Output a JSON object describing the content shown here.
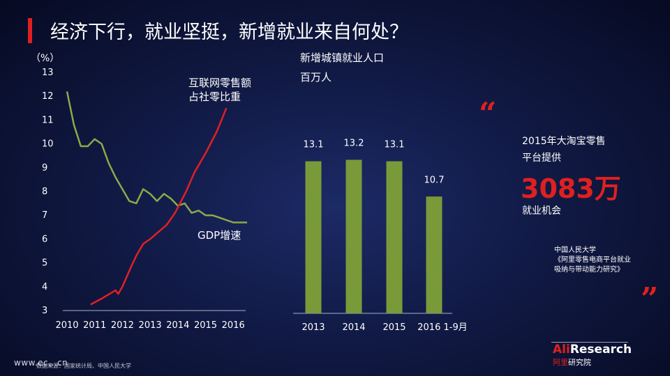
{
  "title": "经济下行，就业坚挺，新增就业来自何处？",
  "colors": {
    "accent": "#e02020",
    "gdp_line": "#8fa84a",
    "retail_line": "#e21f26",
    "bar": "#7a9a3a"
  },
  "chart_data": [
    {
      "type": "line",
      "ylabel": "（%）",
      "ylim": [
        3,
        13
      ],
      "yticks": [
        "3",
        "4",
        "5",
        "6",
        "7",
        "8",
        "9",
        "10",
        "11",
        "12",
        "13"
      ],
      "xlim": [
        2010,
        2016.6
      ],
      "xticks": [
        "2010",
        "2011",
        "2012",
        "2013",
        "2014",
        "2015",
        "2016"
      ],
      "series": [
        {
          "name": "GDP增速",
          "x": [
            2010,
            2010.25,
            2010.5,
            2010.75,
            2011,
            2011.25,
            2011.5,
            2011.75,
            2012,
            2012.25,
            2012.5,
            2012.75,
            2013,
            2013.25,
            2013.5,
            2013.75,
            2014,
            2014.25,
            2014.5,
            2014.75,
            2015,
            2015.25,
            2015.5,
            2015.75,
            2016,
            2016.25,
            2016.5
          ],
          "values": [
            12.2,
            10.8,
            9.9,
            9.9,
            10.2,
            10.0,
            9.2,
            8.6,
            8.1,
            7.6,
            7.5,
            8.1,
            7.9,
            7.6,
            7.9,
            7.7,
            7.4,
            7.5,
            7.1,
            7.2,
            7.0,
            7.0,
            6.9,
            6.8,
            6.7,
            6.7,
            6.7
          ]
        },
        {
          "name": "互联网零售额占社零比重",
          "name_lines": [
            "互联网零售额",
            "占社零比重"
          ],
          "x": [
            2010.85,
            2011.25,
            2011.75,
            2011.85,
            2012,
            2012.3,
            2012.5,
            2012.75,
            2013,
            2013.3,
            2013.6,
            2013.9,
            2014.3,
            2014.6,
            2015,
            2015.4,
            2015.75
          ],
          "values": [
            3.25,
            3.5,
            3.85,
            3.7,
            4.0,
            4.8,
            5.3,
            5.8,
            6.0,
            6.3,
            6.6,
            7.1,
            8.0,
            8.8,
            9.6,
            10.5,
            11.5
          ]
        }
      ]
    },
    {
      "type": "bar",
      "title": "新增城镇就业人口",
      "unit": "百万人",
      "categories": [
        "2013",
        "2014",
        "2015",
        "2016 1-9月"
      ],
      "values": [
        13.1,
        13.2,
        13.1,
        10.7
      ],
      "value_labels": [
        "13.1",
        "13.2",
        "13.1",
        "10.7"
      ]
    }
  ],
  "highlight": {
    "open_quote": "“",
    "close_quote": "”",
    "line1": "2015年大淘宝零售",
    "line2": "平台提供",
    "value": "3083万",
    "line4": "就业机会"
  },
  "source": {
    "line1": "中国人民大学",
    "line2": "《阿里零售电商平台就业",
    "line3": "吸纳与带动能力研究》"
  },
  "logo": {
    "ali": "Ali",
    "research": "Research",
    "cn_red": "阿里",
    "cn": "研究院"
  },
  "footer": {
    "url": "www.ec...cn",
    "source_note": "数据来源：国家统计局、中国人民大学"
  }
}
